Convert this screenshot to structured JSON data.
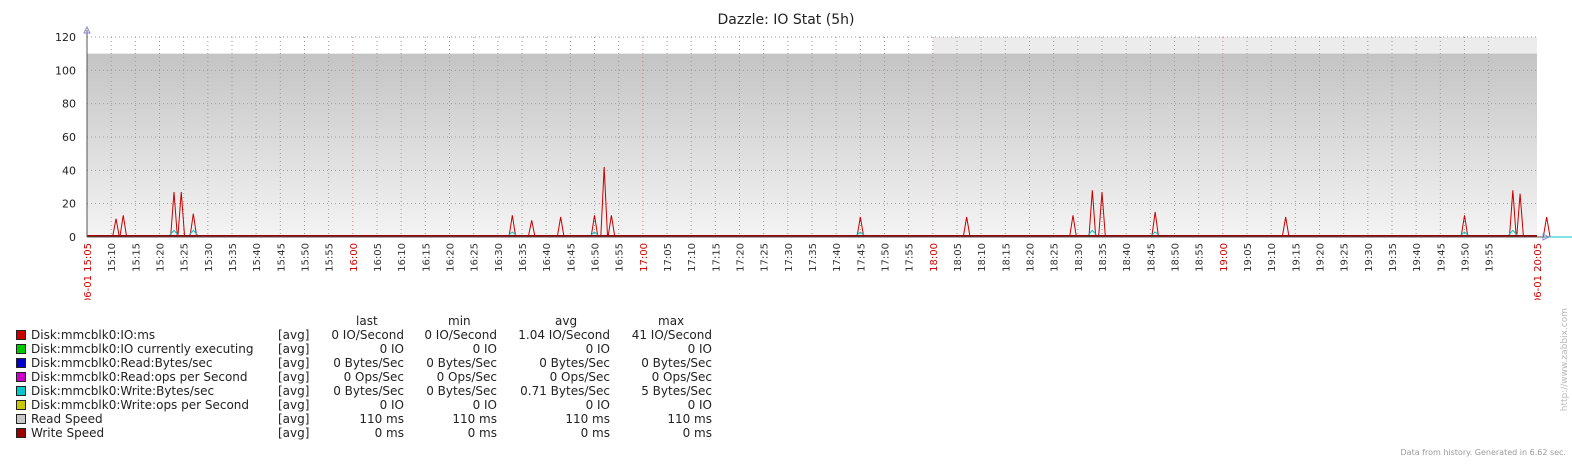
{
  "chart_data": {
    "type": "line",
    "title": "Dazzle: IO Stat (5h)",
    "ylim": [
      0,
      120
    ],
    "y_ticks": [
      "0",
      "20",
      "40",
      "60",
      "80",
      "100",
      "120"
    ],
    "x_ticks": [
      "06-01 15:05",
      "15:10",
      "15:15",
      "15:20",
      "15:25",
      "15:30",
      "15:35",
      "15:40",
      "15:45",
      "15:50",
      "15:55",
      "16:00",
      "16:05",
      "16:10",
      "16:15",
      "16:20",
      "16:25",
      "16:30",
      "16:35",
      "16:40",
      "16:45",
      "16:50",
      "16:55",
      "17:00",
      "17:05",
      "17:10",
      "17:15",
      "17:20",
      "17:25",
      "17:30",
      "17:35",
      "17:40",
      "17:45",
      "17:50",
      "17:55",
      "18:00",
      "18:05",
      "18:10",
      "18:15",
      "18:20",
      "18:25",
      "18:30",
      "18:35",
      "18:40",
      "18:45",
      "18:50",
      "18:55",
      "19:00",
      "19:05",
      "19:10",
      "19:15",
      "19:20",
      "19:25",
      "19:30",
      "19:35",
      "19:40",
      "19:45",
      "19:50",
      "19:55",
      "06-01 20:05"
    ],
    "x_range_minutes": [
      0,
      300
    ],
    "highlight_ticks": [
      "06-01 15:05",
      "16:00",
      "17:00",
      "18:00",
      "19:00",
      "06-01 20:05"
    ],
    "grid": true,
    "legend_position": "bottom",
    "series": [
      {
        "name": "Disk:mmcblk0:IO:ms",
        "color": "#c80000",
        "spikes": [
          [
            6,
            11
          ],
          [
            7.5,
            13
          ],
          [
            18,
            27
          ],
          [
            19.5,
            27
          ],
          [
            22,
            14
          ],
          [
            88,
            13
          ],
          [
            92,
            10
          ],
          [
            98,
            12
          ],
          [
            105,
            13
          ],
          [
            107,
            42
          ],
          [
            108.5,
            13
          ],
          [
            160,
            12
          ],
          [
            182,
            12
          ],
          [
            204,
            13
          ],
          [
            208,
            28
          ],
          [
            210,
            27
          ],
          [
            221,
            15
          ],
          [
            248,
            12
          ],
          [
            285,
            13
          ],
          [
            295,
            28
          ],
          [
            296.5,
            26
          ],
          [
            302,
            12
          ],
          [
            323,
            12
          ],
          [
            355,
            12
          ],
          [
            362,
            13
          ],
          [
            377,
            28
          ],
          [
            379,
            12
          ],
          [
            380.5,
            12
          ],
          [
            387,
            27
          ],
          [
            417,
            15
          ],
          [
            421,
            12
          ],
          [
            423,
            27
          ],
          [
            424.5,
            12
          ],
          [
            446,
            13
          ],
          [
            465,
            12
          ]
        ],
        "last": "0 IO/Second",
        "min": "0 IO/Second",
        "avg": "1.04 IO/Second",
        "max": "41 IO/Second"
      },
      {
        "name": "Disk:mmcblk0:IO currently executing",
        "color": "#00c800",
        "last": "0 IO",
        "min": "0 IO",
        "avg": "0 IO",
        "max": "0 IO"
      },
      {
        "name": "Disk:mmcblk0:Read:Bytes/sec",
        "color": "#0000c8",
        "last": "0 Bytes/Sec",
        "min": "0 Bytes/Sec",
        "avg": "0 Bytes/Sec",
        "max": "0 Bytes/Sec"
      },
      {
        "name": "Disk:mmcblk0:Read:ops per Second",
        "color": "#c800c8",
        "last": "0 Ops/Sec",
        "min": "0 Ops/Sec",
        "avg": "0 Ops/Sec",
        "max": "0 Ops/Sec"
      },
      {
        "name": "Disk:mmcblk0:Write:Bytes/sec",
        "color": "#00c8c8",
        "spikes": [
          [
            18,
            4
          ],
          [
            22,
            4
          ],
          [
            88,
            3
          ],
          [
            105,
            3
          ],
          [
            160,
            3
          ],
          [
            208,
            4
          ],
          [
            221,
            3
          ],
          [
            285,
            3
          ],
          [
            295,
            4
          ],
          [
            377,
            5
          ],
          [
            387,
            4
          ],
          [
            421,
            3
          ]
        ],
        "last": "0 Bytes/Sec",
        "min": "0 Bytes/Sec",
        "avg": "0.71 Bytes/Sec",
        "max": "5 Bytes/Sec"
      },
      {
        "name": "Disk:mmcblk0:Write:ops per Second",
        "color": "#c8c800",
        "last": "0 IO",
        "min": "0 IO",
        "avg": "0 IO",
        "max": "0 IO"
      },
      {
        "name": "Read Speed",
        "color": "#c8c8c8",
        "value": 110,
        "last": "110 ms",
        "min": "110 ms",
        "avg": "110 ms",
        "max": "110 ms"
      },
      {
        "name": "Write Speed",
        "color": "#960000",
        "value": 0,
        "last": "0 ms",
        "min": "0 ms",
        "avg": "0 ms",
        "max": "0 ms"
      }
    ]
  },
  "legend_headers": {
    "last": "last",
    "min": "min",
    "avg": "avg",
    "max": "max"
  },
  "legend_agg": "[avg]",
  "watermark": "http://www.zabbix.com",
  "footer": "Data from history. Generated in 6.62 sec."
}
